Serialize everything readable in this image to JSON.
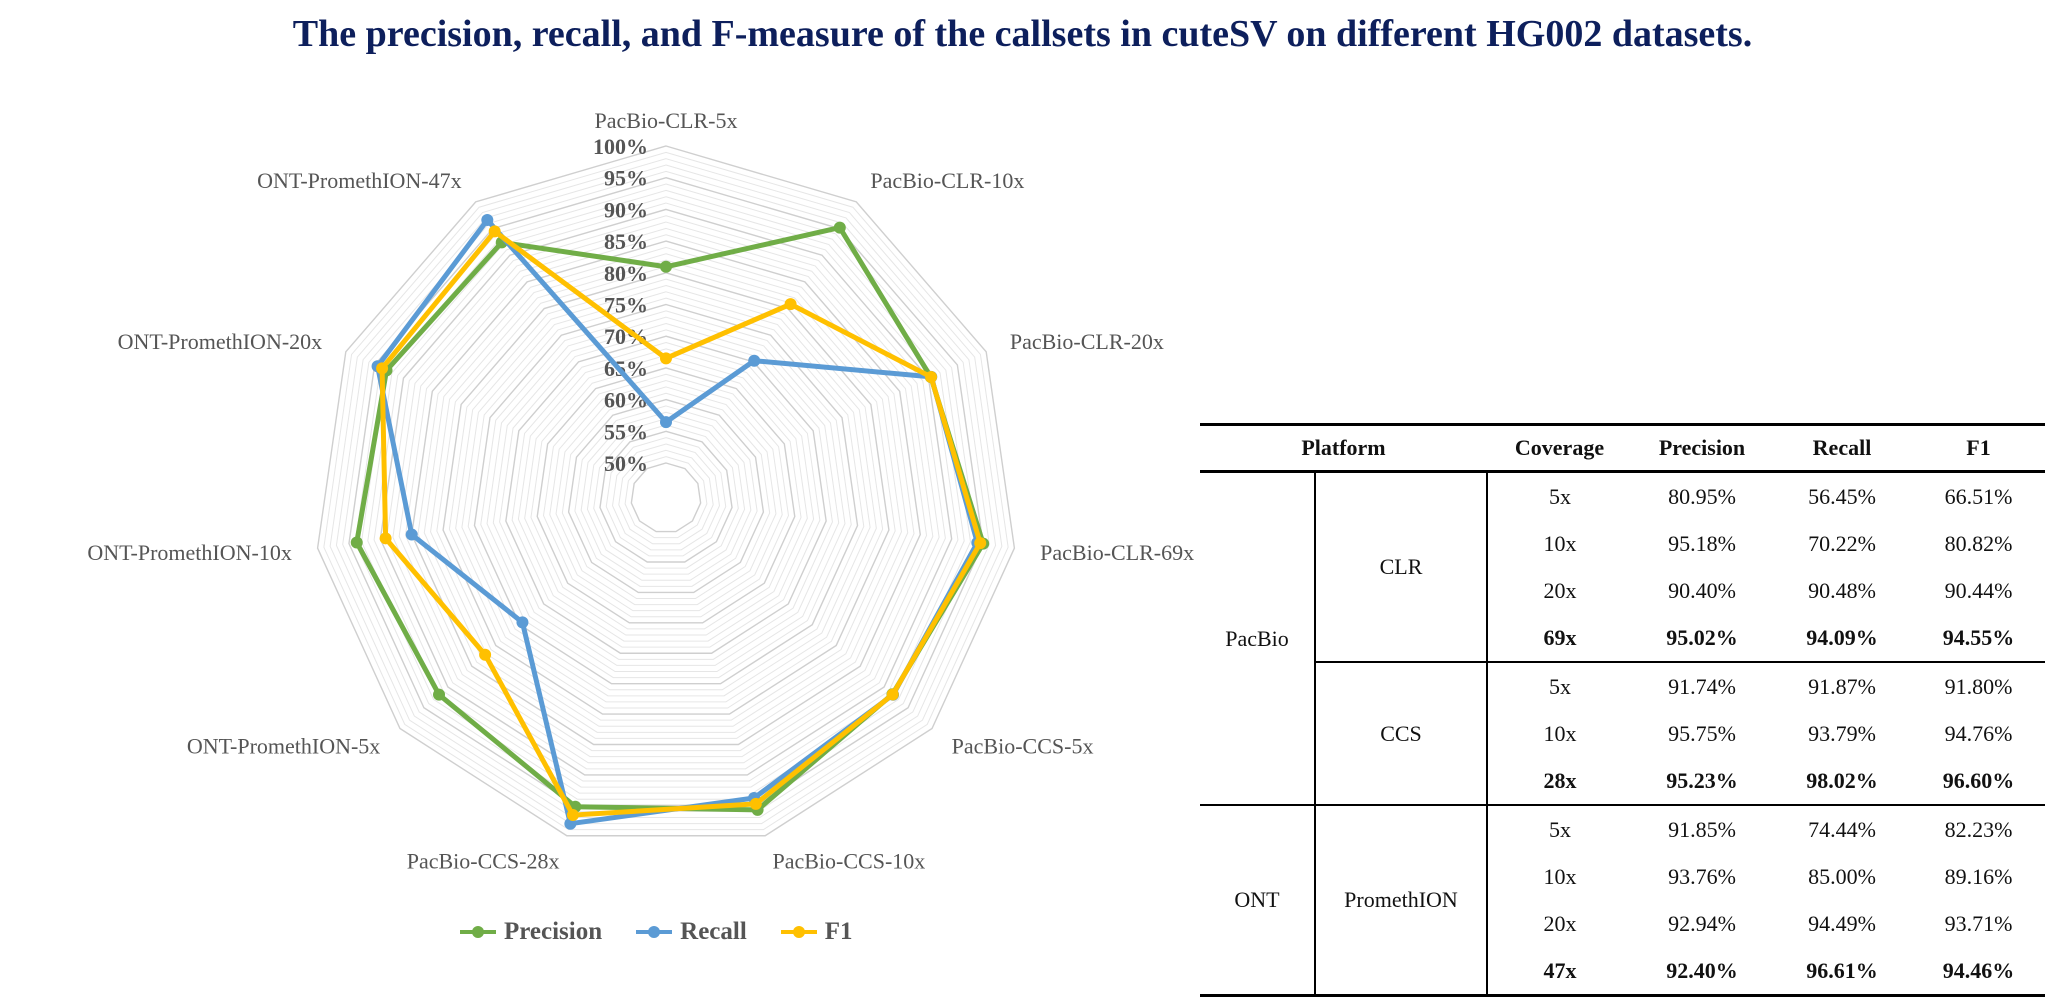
{
  "title": "The precision, recall, and F-measure of the callsets in cuteSV on different HG002 datasets.",
  "chart_data": {
    "type": "radar",
    "title": "",
    "categories": [
      "PacBio-CLR-5x",
      "PacBio-CLR-10x",
      "PacBio-CLR-20x",
      "PacBio-CLR-69x",
      "PacBio-CCS-5x",
      "PacBio-CCS-10x",
      "PacBio-CCS-28x",
      "ONT-PromethION-5x",
      "ONT-PromethION-10x",
      "ONT-PromethION-20x",
      "ONT-PromethION-47x"
    ],
    "axis_min": 50,
    "axis_max": 100,
    "axis_ticks": [
      "50%",
      "55%",
      "60%",
      "65%",
      "70%",
      "75%",
      "80%",
      "85%",
      "90%",
      "95%",
      "100%"
    ],
    "grid": true,
    "legend_position": "bottom",
    "series": [
      {
        "name": "Precision",
        "color": "#70ad47",
        "values": [
          80.95,
          95.18,
          90.4,
          95.02,
          91.74,
          95.75,
          95.23,
          91.85,
          93.76,
          92.94,
          92.4
        ]
      },
      {
        "name": "Recall",
        "color": "#5b9bd5",
        "values": [
          56.45,
          70.22,
          90.48,
          94.09,
          91.87,
          93.79,
          98.02,
          74.44,
          85.0,
          94.49,
          96.61
        ]
      },
      {
        "name": "F1",
        "color": "#ffc000",
        "values": [
          66.51,
          80.82,
          90.44,
          94.55,
          91.8,
          94.76,
          96.6,
          82.23,
          89.16,
          93.71,
          94.46
        ]
      }
    ]
  },
  "table": {
    "headers": [
      "Platform",
      "Coverage",
      "Precision",
      "Recall",
      "F1"
    ],
    "groups": [
      {
        "platform": "PacBio",
        "tech": "CLR",
        "rows": [
          {
            "coverage": "5x",
            "precision": "80.95%",
            "recall": "56.45%",
            "f1": "66.51%"
          },
          {
            "coverage": "10x",
            "precision": "95.18%",
            "recall": "70.22%",
            "f1": "80.82%"
          },
          {
            "coverage": "20x",
            "precision": "90.40%",
            "recall": "90.48%",
            "f1": "90.44%"
          },
          {
            "coverage": "69x",
            "precision": "95.02%",
            "recall": "94.09%",
            "f1": "94.55%"
          }
        ]
      },
      {
        "platform": "PacBio",
        "tech": "CCS",
        "rows": [
          {
            "coverage": "5x",
            "precision": "91.74%",
            "recall": "91.87%",
            "f1": "91.80%"
          },
          {
            "coverage": "10x",
            "precision": "95.75%",
            "recall": "93.79%",
            "f1": "94.76%"
          },
          {
            "coverage": "28x",
            "precision": "95.23%",
            "recall": "98.02%",
            "f1": "96.60%"
          }
        ]
      },
      {
        "platform": "ONT",
        "tech": "PromethION",
        "rows": [
          {
            "coverage": "5x",
            "precision": "91.85%",
            "recall": "74.44%",
            "f1": "82.23%"
          },
          {
            "coverage": "10x",
            "precision": "93.76%",
            "recall": "85.00%",
            "f1": "89.16%"
          },
          {
            "coverage": "20x",
            "precision": "92.94%",
            "recall": "94.49%",
            "f1": "93.71%"
          },
          {
            "coverage": "47x",
            "precision": "92.40%",
            "recall": "96.61%",
            "f1": "94.46%"
          }
        ]
      }
    ]
  }
}
